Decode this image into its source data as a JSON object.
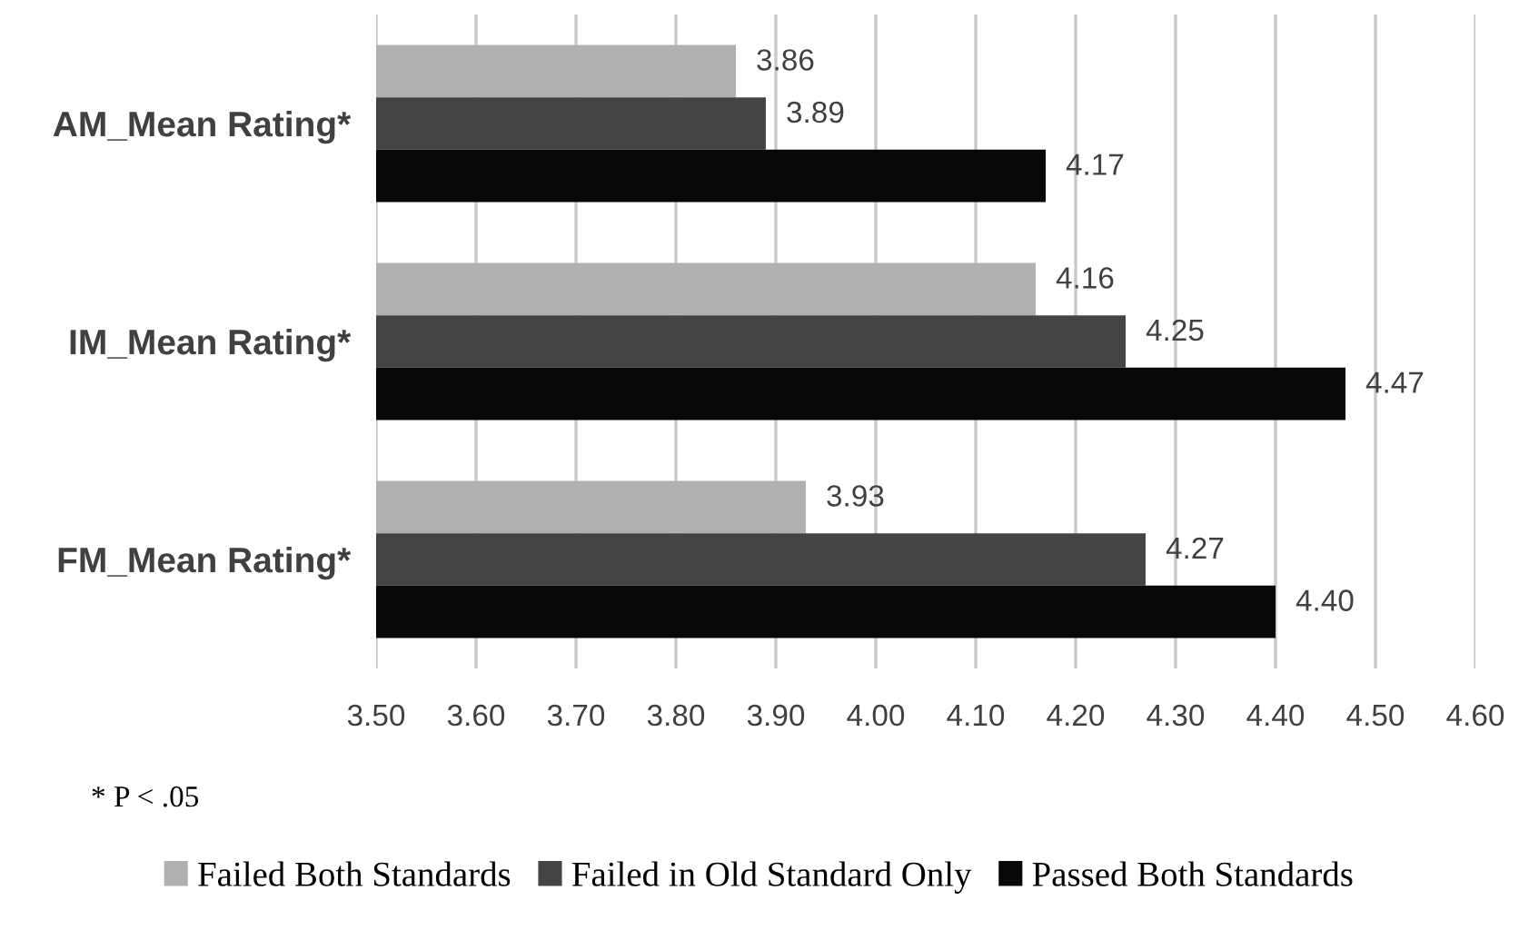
{
  "chart_data": {
    "type": "bar",
    "orientation": "horizontal",
    "categories": [
      "AM_Mean Rating*",
      "IM_Mean Rating*",
      "FM_Mean Rating*"
    ],
    "series": [
      {
        "name": "Failed Both Standards",
        "color": "#b0b0b0",
        "values": [
          3.86,
          4.16,
          3.93
        ],
        "value_labels": [
          "3.86",
          "4.16",
          "3.93"
        ]
      },
      {
        "name": "Failed in Old Standard Only",
        "color": "#444444",
        "values": [
          3.89,
          4.25,
          4.27
        ],
        "value_labels": [
          "3.89",
          "4.25",
          "4.27"
        ]
      },
      {
        "name": "Passed Both Standards",
        "color": "#080808",
        "values": [
          4.17,
          4.47,
          4.4
        ],
        "value_labels": [
          "4.17",
          "4.47",
          "4.40"
        ]
      }
    ],
    "xlim": [
      3.5,
      4.6
    ],
    "xticks": [
      {
        "value": 3.5,
        "label": "3.50"
      },
      {
        "value": 3.6,
        "label": "3.60"
      },
      {
        "value": 3.7,
        "label": "3.70"
      },
      {
        "value": 3.8,
        "label": "3.80"
      },
      {
        "value": 3.9,
        "label": "3.90"
      },
      {
        "value": 4.0,
        "label": "4.00"
      },
      {
        "value": 4.1,
        "label": "4.10"
      },
      {
        "value": 4.2,
        "label": "4.20"
      },
      {
        "value": 4.3,
        "label": "4.30"
      },
      {
        "value": 4.4,
        "label": "4.40"
      },
      {
        "value": 4.5,
        "label": "4.50"
      },
      {
        "value": 4.6,
        "label": "4.60"
      }
    ],
    "grid": "x",
    "legend": "bottom",
    "annotations": [
      "* P < .05"
    ]
  }
}
